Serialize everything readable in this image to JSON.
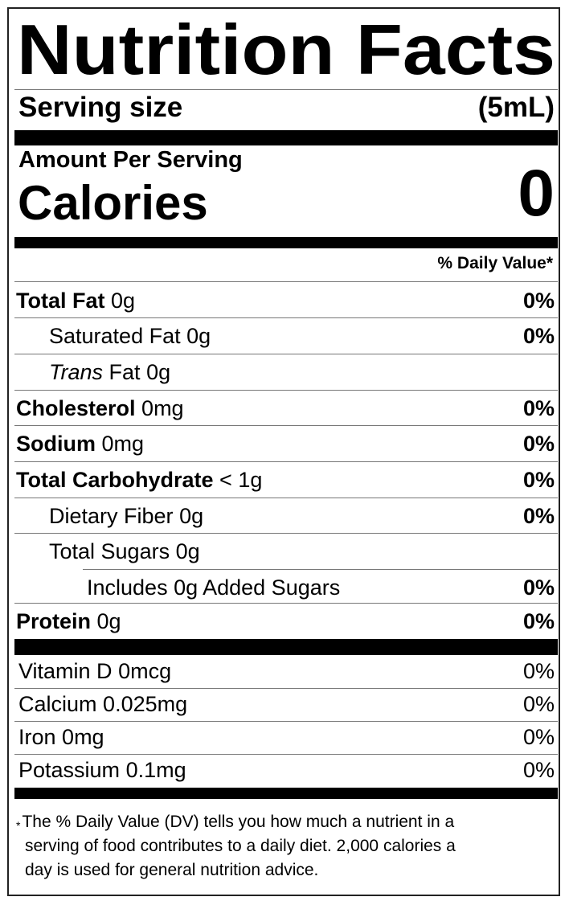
{
  "title": "Nutrition Facts",
  "serving": {
    "label": "Serving size",
    "value": "(5mL)"
  },
  "amount_per_serving": "Amount Per Serving",
  "calories": {
    "label": "Calories",
    "value": "0"
  },
  "dv_header": "% Daily Value*",
  "nutrients": [
    {
      "name": "Total Fat",
      "amount": "0g",
      "dv": "0%",
      "bold": true,
      "indent": 0
    },
    {
      "name": "Saturated Fat",
      "amount": "0g",
      "dv": "0%",
      "bold": false,
      "indent": 1
    },
    {
      "name": "Trans",
      "name_rest": "Fat",
      "amount": "0g",
      "dv": "",
      "bold": false,
      "indent": 1,
      "italic_prefix": true
    },
    {
      "name": "Cholesterol",
      "amount": "0mg",
      "dv": "0%",
      "bold": true,
      "indent": 0
    },
    {
      "name": "Sodium",
      "amount": "0mg",
      "dv": "0%",
      "bold": true,
      "indent": 0
    },
    {
      "name": "Total Carbohydrate",
      "amount": "< 1g",
      "dv": "0%",
      "bold": true,
      "indent": 0
    },
    {
      "name": "Dietary Fiber",
      "amount": "0g",
      "dv": "0%",
      "bold": false,
      "indent": 1
    },
    {
      "name": "Total Sugars",
      "amount": "0g",
      "dv": "",
      "bold": false,
      "indent": 1
    },
    {
      "name": "Includes 0g Added Sugars",
      "amount": "",
      "dv": "0%",
      "bold": false,
      "indent": 2
    },
    {
      "name": "Protein",
      "amount": "0g",
      "dv": "0%",
      "bold": true,
      "indent": 0
    }
  ],
  "vitamins": [
    {
      "name": "Vitamin D",
      "amount": "0mcg",
      "dv": "0%"
    },
    {
      "name": "Calcium",
      "amount": "0.025mg",
      "dv": "0%"
    },
    {
      "name": "Iron",
      "amount": "0mg",
      "dv": "0%"
    },
    {
      "name": "Potassium",
      "amount": "0.1mg",
      "dv": "0%"
    }
  ],
  "footnote": {
    "star": "*",
    "lines": [
      "The % Daily Value (DV) tells you how much a nutrient in a",
      "serving of food contributes to a daily diet. 2,000 calories a",
      "day is used for general nutrition advice."
    ]
  }
}
